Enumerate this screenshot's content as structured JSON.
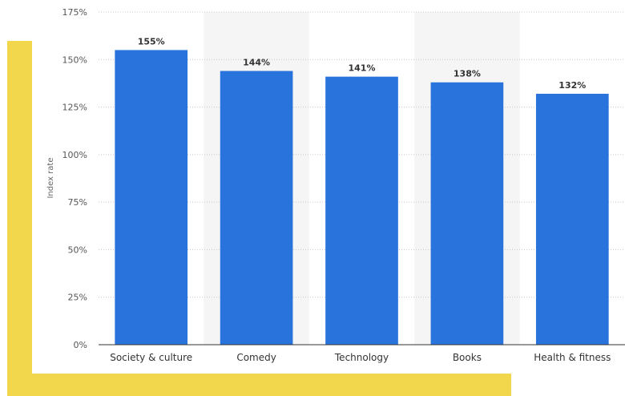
{
  "chart_data": {
    "type": "bar",
    "categories": [
      "Society & culture",
      "Comedy",
      "Technology",
      "Books",
      "Health & fitness"
    ],
    "values": [
      155,
      144,
      141,
      138,
      132
    ],
    "data_labels": [
      "155%",
      "144%",
      "141%",
      "138%",
      "132%"
    ],
    "ylabel": "Index rate",
    "ylim": [
      0,
      175
    ],
    "yticks": [
      0,
      25,
      50,
      75,
      100,
      125,
      150,
      175
    ],
    "ytick_labels": [
      "0%",
      "25%",
      "50%",
      "75%",
      "100%",
      "125%",
      "150%",
      "175%"
    ],
    "grid": true,
    "legend": "none"
  },
  "colors": {
    "bar": "#2873dc",
    "grid": "#c8c8c8",
    "band": "#f5f5f5",
    "accent": "#f2d64b",
    "axis": "#333333"
  }
}
